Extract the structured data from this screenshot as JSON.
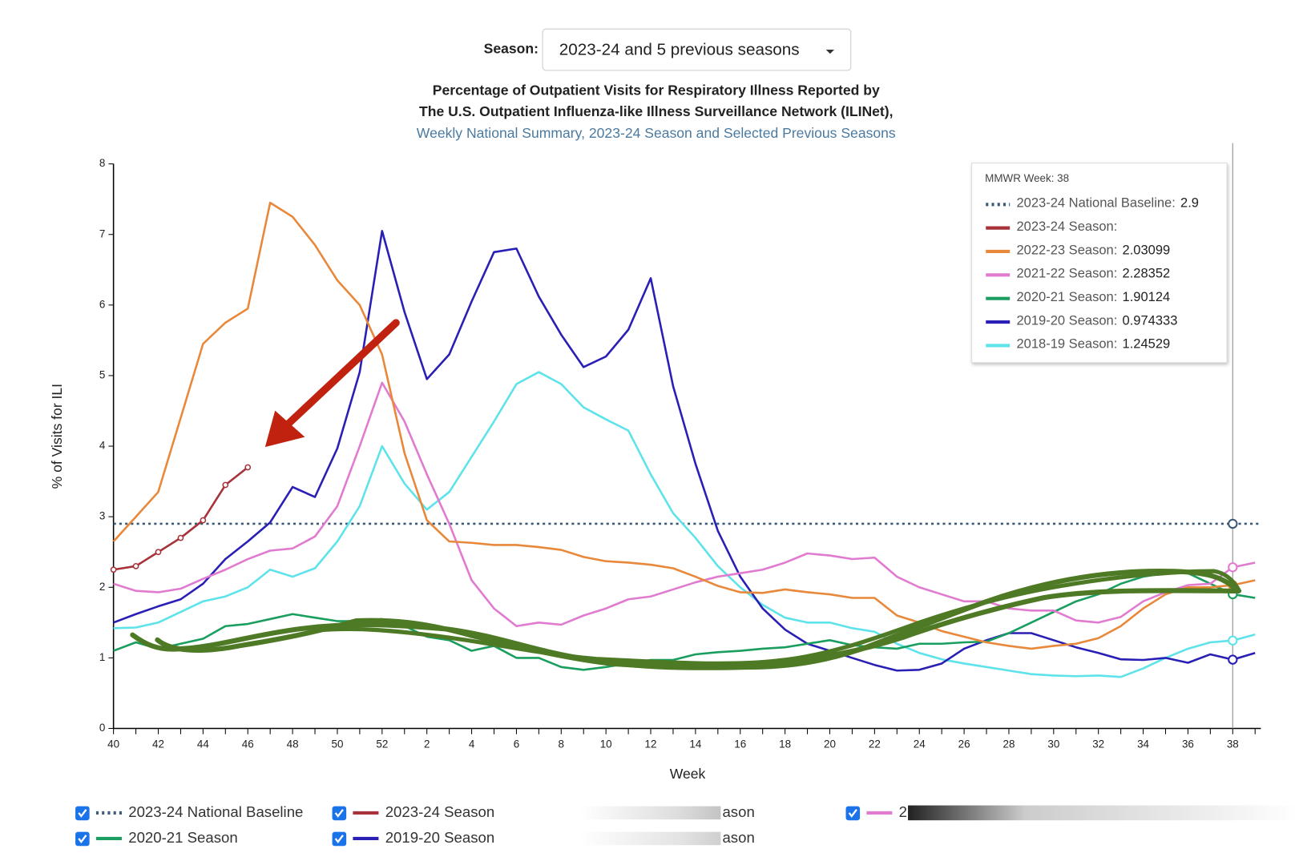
{
  "season_selector": {
    "label": "Season:",
    "value": "2023-24 and 5 previous seasons"
  },
  "chart_data": {
    "type": "line",
    "title": [
      "Percentage of Outpatient Visits for Respiratory Illness Reported by",
      "The U.S. Outpatient Influenza-like Illness Surveillance Network (ILINet),"
    ],
    "subtitle": "Weekly National Summary, 2023-24 Season and Selected Previous Seasons",
    "x_label": "Week",
    "y_label": "% of Visits for ILI",
    "categories": [
      40,
      null,
      42,
      null,
      44,
      null,
      46,
      null,
      48,
      null,
      50,
      null,
      52,
      null,
      2,
      null,
      4,
      null,
      6,
      null,
      8,
      null,
      10,
      null,
      12,
      null,
      14,
      null,
      16,
      null,
      18,
      null,
      20,
      null,
      22,
      null,
      24,
      null,
      26,
      null,
      28,
      null,
      30,
      null,
      32,
      null,
      34,
      null,
      36,
      null,
      38,
      null
    ],
    "ylim": [
      0,
      8
    ],
    "yticks": [
      0,
      1,
      2,
      3,
      4,
      5,
      6,
      7,
      8
    ],
    "baseline": {
      "name": "2023-24 National Baseline",
      "value": 2.9,
      "color": "#3b5b78"
    },
    "series": [
      {
        "name": "2023-24 Season",
        "color": "#a8323a",
        "markers": true,
        "values": [
          2.25,
          2.3,
          2.5,
          2.7,
          2.95,
          3.45,
          3.7,
          null,
          null,
          null,
          null,
          null,
          null,
          null,
          null,
          null,
          null,
          null,
          null,
          null,
          null,
          null,
          null,
          null,
          null,
          null,
          null,
          null,
          null,
          null,
          null,
          null,
          null,
          null,
          null,
          null,
          null,
          null,
          null,
          null,
          null,
          null,
          null,
          null,
          null,
          null,
          null,
          null,
          null,
          null,
          null,
          null
        ]
      },
      {
        "name": "2022-23 Season",
        "color": "#e8883a",
        "values": [
          2.65,
          3.0,
          3.35,
          4.4,
          5.45,
          5.75,
          5.95,
          7.45,
          7.25,
          6.85,
          6.35,
          6.0,
          5.3,
          3.9,
          2.95,
          2.65,
          2.63,
          2.6,
          2.6,
          2.57,
          2.53,
          2.43,
          2.37,
          2.35,
          2.32,
          2.27,
          2.15,
          2.02,
          1.93,
          1.92,
          1.97,
          1.93,
          1.9,
          1.85,
          1.85,
          1.6,
          1.5,
          1.38,
          1.3,
          1.22,
          1.17,
          1.13,
          1.17,
          1.2,
          1.28,
          1.45,
          1.7,
          1.9,
          2.0,
          2.0,
          2.03099,
          2.1
        ]
      },
      {
        "name": "2021-22 Season",
        "color": "#e07bd0",
        "values": [
          2.05,
          1.95,
          1.93,
          1.98,
          2.12,
          2.25,
          2.4,
          2.52,
          2.55,
          2.72,
          3.15,
          4.0,
          4.9,
          4.35,
          3.6,
          2.9,
          2.1,
          1.7,
          1.45,
          1.5,
          1.47,
          1.6,
          1.7,
          1.83,
          1.87,
          1.97,
          2.07,
          2.15,
          2.2,
          2.25,
          2.35,
          2.48,
          2.45,
          2.4,
          2.42,
          2.15,
          2.0,
          1.9,
          1.8,
          1.8,
          1.7,
          1.67,
          1.67,
          1.53,
          1.5,
          1.58,
          1.8,
          1.93,
          2.03,
          2.05,
          2.28352,
          2.35
        ]
      },
      {
        "name": "2020-21 Season",
        "color": "#1a9e5f",
        "values": [
          1.1,
          1.22,
          1.13,
          1.2,
          1.27,
          1.45,
          1.48,
          1.55,
          1.62,
          1.57,
          1.52,
          1.52,
          1.55,
          1.45,
          1.3,
          1.25,
          1.1,
          1.17,
          1.0,
          1.0,
          0.87,
          0.83,
          0.87,
          0.92,
          0.97,
          0.97,
          1.05,
          1.08,
          1.1,
          1.13,
          1.15,
          1.2,
          1.25,
          1.18,
          1.15,
          1.13,
          1.2,
          1.2,
          1.22,
          1.23,
          1.35,
          1.5,
          1.65,
          1.8,
          1.9,
          2.05,
          2.15,
          2.2,
          2.2,
          2.05,
          1.90124,
          1.85
        ]
      },
      {
        "name": "2019-20 Season",
        "color": "#2a1fb5",
        "values": [
          1.5,
          1.62,
          1.73,
          1.83,
          2.05,
          2.4,
          2.65,
          2.92,
          3.42,
          3.28,
          3.97,
          5.05,
          7.05,
          5.9,
          4.95,
          5.3,
          6.05,
          6.75,
          6.8,
          6.12,
          5.58,
          5.12,
          5.27,
          5.65,
          6.38,
          4.85,
          3.75,
          2.8,
          2.15,
          1.7,
          1.4,
          1.2,
          1.1,
          1.0,
          0.9,
          0.82,
          0.83,
          0.92,
          1.13,
          1.25,
          1.35,
          1.35,
          1.25,
          1.15,
          1.07,
          0.98,
          0.97,
          1.0,
          0.93,
          1.05,
          0.974333,
          1.07
        ]
      },
      {
        "name": "2018-19 Season",
        "color": "#5ee3ea",
        "values": [
          1.42,
          1.43,
          1.5,
          1.65,
          1.8,
          1.87,
          2.0,
          2.25,
          2.15,
          2.27,
          2.65,
          3.15,
          4.0,
          3.47,
          3.1,
          3.35,
          3.85,
          4.35,
          4.88,
          5.05,
          4.88,
          4.55,
          4.38,
          4.22,
          3.6,
          3.05,
          2.7,
          2.3,
          2.0,
          1.75,
          1.57,
          1.5,
          1.5,
          1.42,
          1.37,
          1.2,
          1.07,
          0.98,
          0.92,
          0.87,
          0.82,
          0.77,
          0.75,
          0.74,
          0.75,
          0.73,
          0.85,
          1.0,
          1.13,
          1.22,
          1.24529,
          1.33
        ]
      }
    ],
    "tooltip": {
      "title": "MMWR Week: 38",
      "labels": [
        "2023-24 National Baseline:",
        "2023-24 Season:",
        "2022-23 Season:",
        "2021-22 Season:",
        "2020-21 Season:",
        "2019-20 Season:",
        "2018-19 Season:"
      ]
    },
    "legend": [
      {
        "label": "2023-24 National Baseline",
        "color": "#3b5b78",
        "dash": true
      },
      {
        "label": "2023-24 Season",
        "color": "#a8323a"
      },
      {
        "label": "ason"
      },
      {
        "label": "2",
        "color": "#e07bd0"
      },
      {
        "label": "2020-21 Season",
        "color": "#1a9e5f"
      },
      {
        "label": "2019-20 Season",
        "color": "#2a1fb5"
      },
      {
        "label": "ason"
      }
    ]
  }
}
